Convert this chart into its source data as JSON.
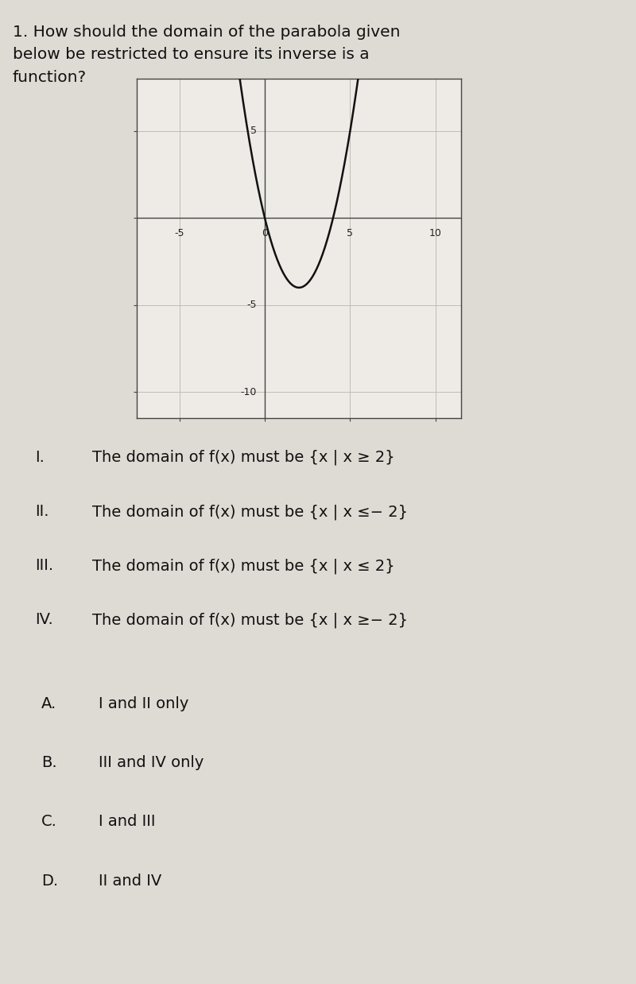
{
  "title_line1": "1. How should the domain of the parabola given",
  "title_line2": "below be restricted to ensure its inverse is a",
  "title_line3": "function?",
  "title_fontsize": 14.5,
  "bg_color": "#dedad4",
  "graph_bg": "#eeebe6",
  "parabola_vertex_x": 2,
  "parabola_vertex_y": -4,
  "parabola_a": 1,
  "xlim": [
    -7.5,
    11.5
  ],
  "ylim": [
    -11.5,
    8.0
  ],
  "xticks": [
    -5,
    0,
    5,
    10
  ],
  "yticks": [
    -10,
    -5,
    0,
    5
  ],
  "grid_color": "#c0bcb5",
  "curve_color": "#111111",
  "curve_lw": 1.8,
  "options": [
    {
      "label": "I.",
      "text_plain": "The domain of f(x) must be {x | x ≥ 2}"
    },
    {
      "label": "II.",
      "text_plain": "The domain of f(x) must be {x | x ≤− 2}"
    },
    {
      "label": "III.",
      "text_plain": "The domain of f(x) must be {x | x ≤ 2}"
    },
    {
      "label": "IV.",
      "text_plain": "The domain of f(x) must be {x | x ≥− 2}"
    }
  ],
  "answers": [
    {
      "label": "A.",
      "text": "I and II only"
    },
    {
      "label": "B.",
      "text": "III and IV only"
    },
    {
      "label": "C.",
      "text": "I and III"
    },
    {
      "label": "D.",
      "text": "II and IV"
    }
  ],
  "option_fontsize": 14,
  "answer_fontsize": 14,
  "label_indent": 0.055,
  "text_indent": 0.15
}
